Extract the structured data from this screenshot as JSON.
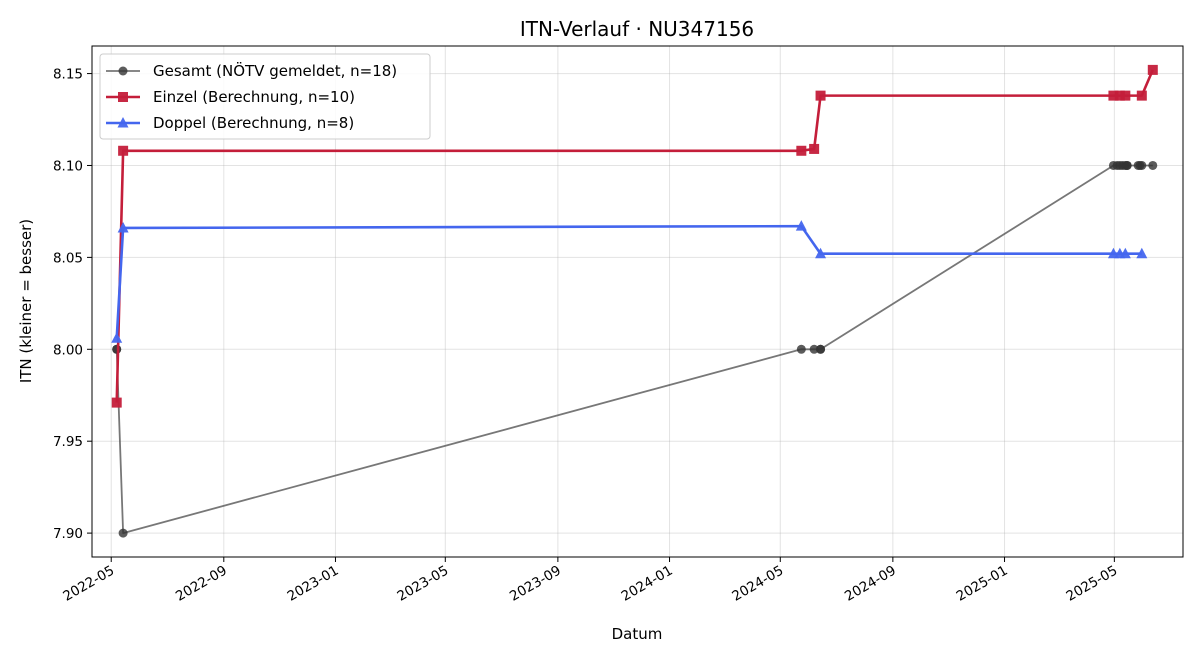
{
  "chart_data": {
    "type": "line",
    "title": "ITN-Verlauf · NU347156",
    "xlabel": "Datum",
    "ylabel": "ITN  (kleiner = besser)",
    "x_type": "date",
    "xlim": [
      "2022-04-10",
      "2025-07-15"
    ],
    "ylim": [
      7.887,
      8.165
    ],
    "x_ticks": [
      "2022-05-01",
      "2022-09-01",
      "2023-01-01",
      "2023-05-01",
      "2023-09-01",
      "2024-01-01",
      "2024-05-01",
      "2024-09-01",
      "2025-01-01",
      "2025-05-01"
    ],
    "x_tick_labels": [
      "2022-05",
      "2022-09",
      "2023-01",
      "2023-05",
      "2023-09",
      "2024-01",
      "2024-05",
      "2024-09",
      "2025-01",
      "2025-05"
    ],
    "y_ticks": [
      7.9,
      7.95,
      8.0,
      8.05,
      8.1,
      8.15
    ],
    "y_tick_labels": [
      "7.90",
      "7.95",
      "8.00",
      "8.05",
      "8.10",
      "8.15"
    ],
    "grid": true,
    "legend_position": "top-left",
    "series": [
      {
        "name": "Gesamt (NÖTV gemeldet, n=18)",
        "color": "#555555",
        "marker": "circle",
        "points": [
          {
            "x": "2022-05-07",
            "y": 8.0
          },
          {
            "x": "2022-05-07",
            "y": 8.0
          },
          {
            "x": "2022-05-14",
            "y": 7.9
          },
          {
            "x": "2024-05-24",
            "y": 8.0
          },
          {
            "x": "2024-06-07",
            "y": 8.0
          },
          {
            "x": "2024-06-14",
            "y": 8.0
          },
          {
            "x": "2024-06-14",
            "y": 8.0
          },
          {
            "x": "2025-04-30",
            "y": 8.1
          },
          {
            "x": "2025-05-04",
            "y": 8.1
          },
          {
            "x": "2025-05-07",
            "y": 8.1
          },
          {
            "x": "2025-05-10",
            "y": 8.1
          },
          {
            "x": "2025-05-13",
            "y": 8.1
          },
          {
            "x": "2025-05-15",
            "y": 8.1
          },
          {
            "x": "2025-05-15",
            "y": 8.1
          },
          {
            "x": "2025-05-27",
            "y": 8.1
          },
          {
            "x": "2025-05-29",
            "y": 8.1
          },
          {
            "x": "2025-05-31",
            "y": 8.1
          },
          {
            "x": "2025-06-12",
            "y": 8.1
          }
        ]
      },
      {
        "name": "Einzel (Berechnung, n=10)",
        "color": "#c41e3a",
        "marker": "square",
        "points": [
          {
            "x": "2022-05-07",
            "y": 7.971
          },
          {
            "x": "2022-05-14",
            "y": 8.108
          },
          {
            "x": "2024-05-24",
            "y": 8.108
          },
          {
            "x": "2024-06-07",
            "y": 8.109
          },
          {
            "x": "2024-06-14",
            "y": 8.138
          },
          {
            "x": "2025-04-30",
            "y": 8.138
          },
          {
            "x": "2025-05-07",
            "y": 8.138
          },
          {
            "x": "2025-05-13",
            "y": 8.138
          },
          {
            "x": "2025-05-31",
            "y": 8.138
          },
          {
            "x": "2025-06-12",
            "y": 8.152
          }
        ]
      },
      {
        "name": "Doppel (Berechnung, n=8)",
        "color": "#4466ee",
        "marker": "triangle",
        "points": [
          {
            "x": "2022-05-07",
            "y": 8.006
          },
          {
            "x": "2022-05-14",
            "y": 8.066
          },
          {
            "x": "2024-05-24",
            "y": 8.067
          },
          {
            "x": "2024-06-14",
            "y": 8.052
          },
          {
            "x": "2025-04-30",
            "y": 8.052
          },
          {
            "x": "2025-05-07",
            "y": 8.052
          },
          {
            "x": "2025-05-13",
            "y": 8.052
          },
          {
            "x": "2025-05-31",
            "y": 8.052
          }
        ]
      }
    ]
  }
}
